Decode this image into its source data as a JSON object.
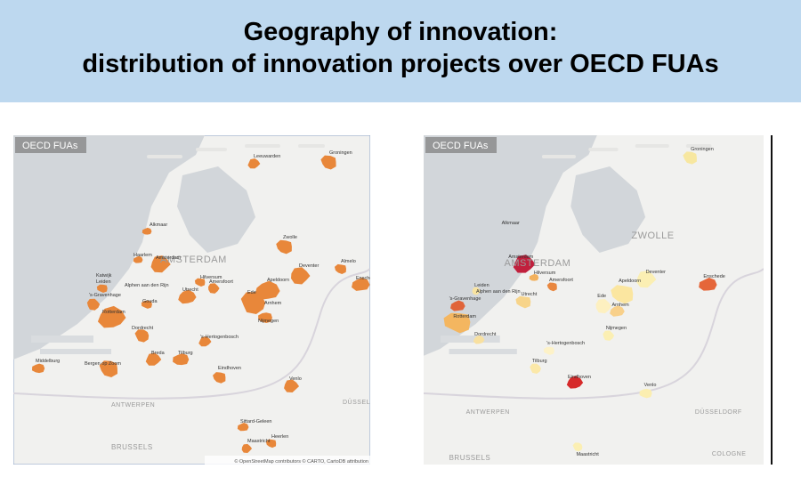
{
  "header": {
    "title_lines": [
      "Geography of innovation:",
      "distribution of innovation projects over OECD FUAs"
    ]
  },
  "maps": [
    {
      "legend": "OECD FUAs",
      "cities": [
        "Groningen",
        "Leeuwarden",
        "Alkmaar",
        "Zwolle",
        "Haarlem",
        "Amsterdam",
        "Almelo",
        "Deventer",
        "Enschede",
        "Hilversum",
        "Katwijk",
        "Leiden",
        "Alphen aan den Rijn",
        "Amersfoort",
        "Apeldoorn",
        "'s-Gravenhage",
        "Utrecht",
        "Ede",
        "Gouda",
        "Arnhem",
        "Rotterdam",
        "Nijmegen",
        "Dordrecht",
        "'s-Hertogenbosch",
        "Middelburg",
        "Bergen op Zoom",
        "Breda",
        "Tilburg",
        "Eindhoven",
        "Venlo",
        "Sittard-Geleen",
        "Heerlen",
        "Maastricht"
      ],
      "basemap_labels": [
        "AMSTERDAM",
        "ANTWERPEN",
        "BRUSSELS",
        "DÜSSELDORF"
      ],
      "attribution": "© OpenStreetMap contributors © CARTO, CartoDB attribution"
    },
    {
      "legend": "OECD FUAs",
      "cities": [
        "Groningen",
        "Alkmaar",
        "Amsterdam",
        "Hilversum",
        "Amersfoort",
        "Deventer",
        "Enschede",
        "Apeldoorn",
        "Leiden",
        "Alphen aan den Rijn",
        "'s-Gravenhage",
        "Utrecht",
        "Ede",
        "Arnhem",
        "Rotterdam",
        "Nijmegen",
        "Dordrecht",
        "'s-Hertogenbosch",
        "Tilburg",
        "Eindhoven",
        "Venlo",
        "Maastricht"
      ],
      "basemap_labels": [
        "ZWOLLE",
        "AMSTERDAM",
        "ANTWERPEN",
        "BRUSSELS",
        "DÜSSELDORF",
        "COLOGNE"
      ]
    }
  ]
}
